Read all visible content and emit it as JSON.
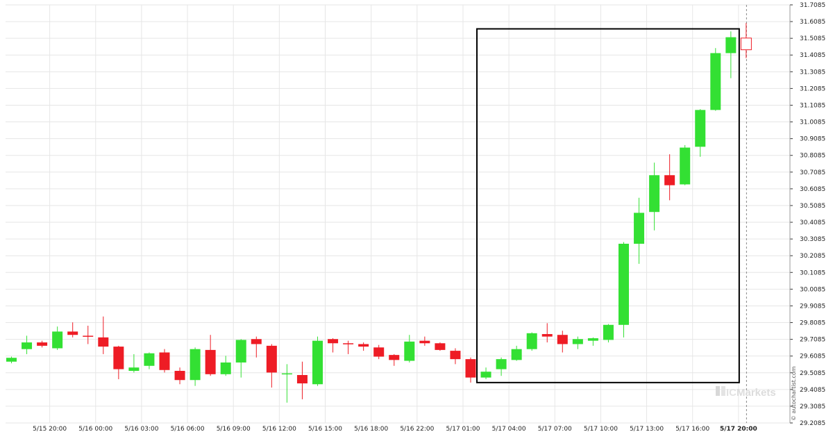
{
  "chart_data": {
    "type": "candlestick",
    "title": "",
    "xlabel": "",
    "ylabel": "",
    "ylim": [
      29.2085,
      31.7085
    ],
    "y_ticks": [
      "31.7085",
      "31.6085",
      "31.5085",
      "31.4085",
      "31.3085",
      "31.2085",
      "31.1085",
      "31.0085",
      "30.9085",
      "30.8085",
      "30.7085",
      "30.6085",
      "30.5085",
      "30.4085",
      "30.3085",
      "30.2085",
      "30.1085",
      "30.0085",
      "29.9085",
      "29.8085",
      "29.7085",
      "29.6085",
      "29.5085",
      "29.4085",
      "29.3085",
      "29.2085"
    ],
    "x_ticks": [
      {
        "label": "5/15 20:00",
        "index": 2.5
      },
      {
        "label": "5/16 00:00",
        "index": 5.5
      },
      {
        "label": "5/16 03:00",
        "index": 8.5
      },
      {
        "label": "5/16 06:00",
        "index": 11.5
      },
      {
        "label": "5/16 09:00",
        "index": 14.5
      },
      {
        "label": "5/16 12:00",
        "index": 17.5
      },
      {
        "label": "5/16 15:00",
        "index": 20.5
      },
      {
        "label": "5/16 18:00",
        "index": 23.5
      },
      {
        "label": "5/16 22:00",
        "index": 26.5
      },
      {
        "label": "5/17 01:00",
        "index": 29.5
      },
      {
        "label": "5/17 04:00",
        "index": 32.5
      },
      {
        "label": "5/17 07:00",
        "index": 35.5
      },
      {
        "label": "5/17 10:00",
        "index": 38.5
      },
      {
        "label": "5/17 13:00",
        "index": 41.5
      },
      {
        "label": "5/17 16:00",
        "index": 44.5
      },
      {
        "label": "5/17 20:00",
        "index": 47.5,
        "bold": true
      }
    ],
    "candles": [
      {
        "o": 29.575,
        "h": 29.605,
        "l": 29.565,
        "c": 29.598
      },
      {
        "o": 29.65,
        "h": 29.73,
        "l": 29.62,
        "c": 29.69
      },
      {
        "o": 29.69,
        "h": 29.7,
        "l": 29.66,
        "c": 29.67
      },
      {
        "o": 29.655,
        "h": 29.785,
        "l": 29.645,
        "c": 29.755
      },
      {
        "o": 29.755,
        "h": 29.81,
        "l": 29.72,
        "c": 29.735
      },
      {
        "o": 29.73,
        "h": 29.79,
        "l": 29.68,
        "c": 29.725
      },
      {
        "o": 29.72,
        "h": 29.845,
        "l": 29.62,
        "c": 29.665
      },
      {
        "o": 29.665,
        "h": 29.67,
        "l": 29.47,
        "c": 29.53
      },
      {
        "o": 29.52,
        "h": 29.62,
        "l": 29.51,
        "c": 29.54
      },
      {
        "o": 29.55,
        "h": 29.63,
        "l": 29.53,
        "c": 29.625
      },
      {
        "o": 29.63,
        "h": 29.65,
        "l": 29.51,
        "c": 29.525
      },
      {
        "o": 29.52,
        "h": 29.54,
        "l": 29.44,
        "c": 29.465
      },
      {
        "o": 29.465,
        "h": 29.66,
        "l": 29.43,
        "c": 29.65
      },
      {
        "o": 29.645,
        "h": 29.735,
        "l": 29.49,
        "c": 29.5
      },
      {
        "o": 29.5,
        "h": 29.61,
        "l": 29.49,
        "c": 29.57
      },
      {
        "o": 29.57,
        "h": 29.71,
        "l": 29.48,
        "c": 29.705
      },
      {
        "o": 29.71,
        "h": 29.725,
        "l": 29.6,
        "c": 29.68
      },
      {
        "o": 29.67,
        "h": 29.68,
        "l": 29.42,
        "c": 29.51
      },
      {
        "o": 29.505,
        "h": 29.56,
        "l": 29.33,
        "c": 29.505
      },
      {
        "o": 29.495,
        "h": 29.575,
        "l": 29.35,
        "c": 29.445
      },
      {
        "o": 29.44,
        "h": 29.725,
        "l": 29.43,
        "c": 29.7
      },
      {
        "o": 29.71,
        "h": 29.715,
        "l": 29.63,
        "c": 29.685
      },
      {
        "o": 29.685,
        "h": 29.7,
        "l": 29.62,
        "c": 29.68
      },
      {
        "o": 29.68,
        "h": 29.69,
        "l": 29.64,
        "c": 29.665
      },
      {
        "o": 29.66,
        "h": 29.675,
        "l": 29.59,
        "c": 29.605
      },
      {
        "o": 29.615,
        "h": 29.62,
        "l": 29.55,
        "c": 29.585
      },
      {
        "o": 29.58,
        "h": 29.735,
        "l": 29.57,
        "c": 29.695
      },
      {
        "o": 29.7,
        "h": 29.725,
        "l": 29.67,
        "c": 29.685
      },
      {
        "o": 29.685,
        "h": 29.69,
        "l": 29.64,
        "c": 29.645
      },
      {
        "o": 29.64,
        "h": 29.655,
        "l": 29.56,
        "c": 29.59
      },
      {
        "o": 29.59,
        "h": 29.6,
        "l": 29.45,
        "c": 29.48
      },
      {
        "o": 29.48,
        "h": 29.54,
        "l": 29.47,
        "c": 29.515
      },
      {
        "o": 29.53,
        "h": 29.6,
        "l": 29.49,
        "c": 29.59
      },
      {
        "o": 29.585,
        "h": 29.67,
        "l": 29.58,
        "c": 29.65
      },
      {
        "o": 29.65,
        "h": 29.75,
        "l": 29.64,
        "c": 29.745
      },
      {
        "o": 29.74,
        "h": 29.805,
        "l": 29.69,
        "c": 29.725
      },
      {
        "o": 29.735,
        "h": 29.76,
        "l": 29.63,
        "c": 29.68
      },
      {
        "o": 29.68,
        "h": 29.725,
        "l": 29.65,
        "c": 29.71
      },
      {
        "o": 29.7,
        "h": 29.72,
        "l": 29.67,
        "c": 29.715
      },
      {
        "o": 29.705,
        "h": 29.8,
        "l": 29.69,
        "c": 29.795
      },
      {
        "o": 29.795,
        "h": 30.29,
        "l": 29.72,
        "c": 30.28
      },
      {
        "o": 30.28,
        "h": 30.555,
        "l": 30.16,
        "c": 30.465
      },
      {
        "o": 30.47,
        "h": 30.765,
        "l": 30.36,
        "c": 30.69
      },
      {
        "o": 30.69,
        "h": 30.815,
        "l": 30.54,
        "c": 30.63
      },
      {
        "o": 30.635,
        "h": 30.87,
        "l": 30.63,
        "c": 30.855
      },
      {
        "o": 30.86,
        "h": 31.085,
        "l": 30.8,
        "c": 31.08
      },
      {
        "o": 31.08,
        "h": 31.45,
        "l": 31.075,
        "c": 31.42
      },
      {
        "o": 31.42,
        "h": 31.55,
        "l": 31.27,
        "c": 31.515
      },
      {
        "o": 31.51,
        "h": 31.6,
        "l": 31.39,
        "c": 31.44
      }
    ],
    "last_candle_hollow": true,
    "pattern_box": {
      "from_index": 30.5,
      "to_index": 47.5,
      "high": 31.565,
      "low": 29.45
    },
    "current_marker_index": 48.0,
    "colors": {
      "up": "#33e033",
      "down": "#ee1c25",
      "box": "#000000",
      "grid": "#e6e6e6",
      "marker": "#888888"
    }
  },
  "watermark": {
    "site": "© autochartist.com",
    "brand_ic": "IC",
    "brand_name": "Markets"
  }
}
